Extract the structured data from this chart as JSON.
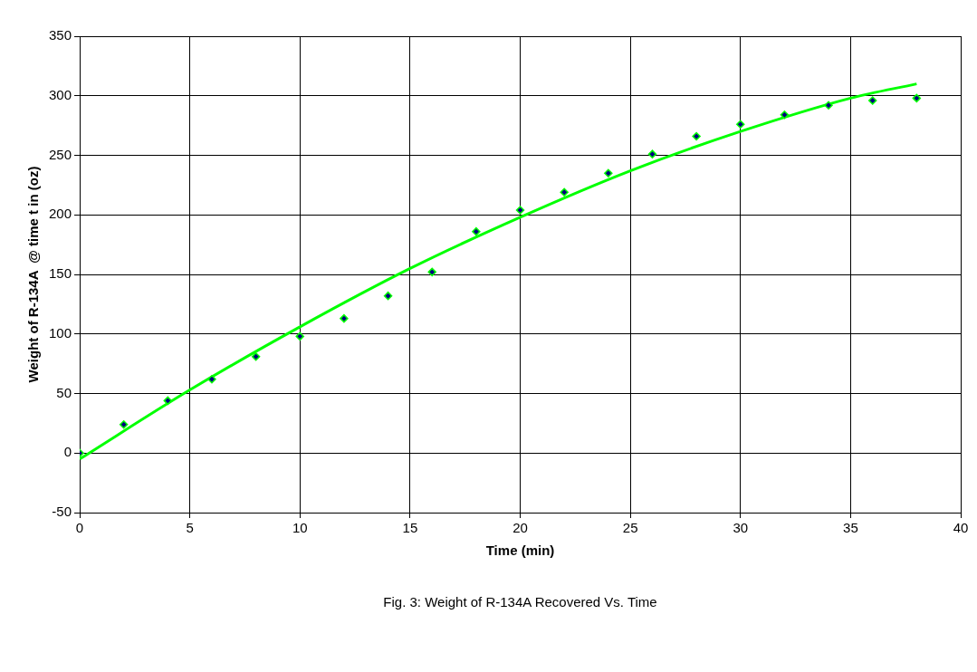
{
  "chart_data": {
    "type": "scatter",
    "xlabel": "Time (min)",
    "ylabel": "Weight of R-134A  @ time t in (oz)",
    "annotations": [
      "Fig. 3: Weight of R-134A Recovered Vs. Time"
    ],
    "series": [
      {
        "color": "#000080",
        "marker": "diamond",
        "x": [
          0,
          2,
          4,
          6,
          8,
          10,
          12,
          14,
          16,
          18,
          20,
          22,
          24,
          26,
          28,
          30,
          32,
          34,
          36,
          38
        ],
        "values": [
          0,
          24,
          44,
          62,
          81,
          98,
          113,
          132,
          152,
          186,
          204,
          219,
          235,
          251,
          266,
          276,
          284,
          292,
          296,
          298
        ]
      },
      {
        "type": "line",
        "marker": "none",
        "color": "#00ff00",
        "x": [
          0,
          5,
          10,
          15,
          20,
          25,
          30,
          35,
          38
        ],
        "values": [
          -5,
          53,
          106,
          155,
          198,
          237,
          270,
          298,
          310
        ]
      }
    ],
    "xlim": [
      0,
      40
    ],
    "xticks": [
      0,
      5,
      10,
      15,
      20,
      25,
      30,
      35,
      40
    ],
    "ylim": [
      -50,
      350
    ],
    "yticks": [
      -50,
      0,
      50,
      100,
      150,
      200,
      250,
      300,
      350
    ],
    "grid": true,
    "legend": false,
    "line_style": "solid"
  }
}
